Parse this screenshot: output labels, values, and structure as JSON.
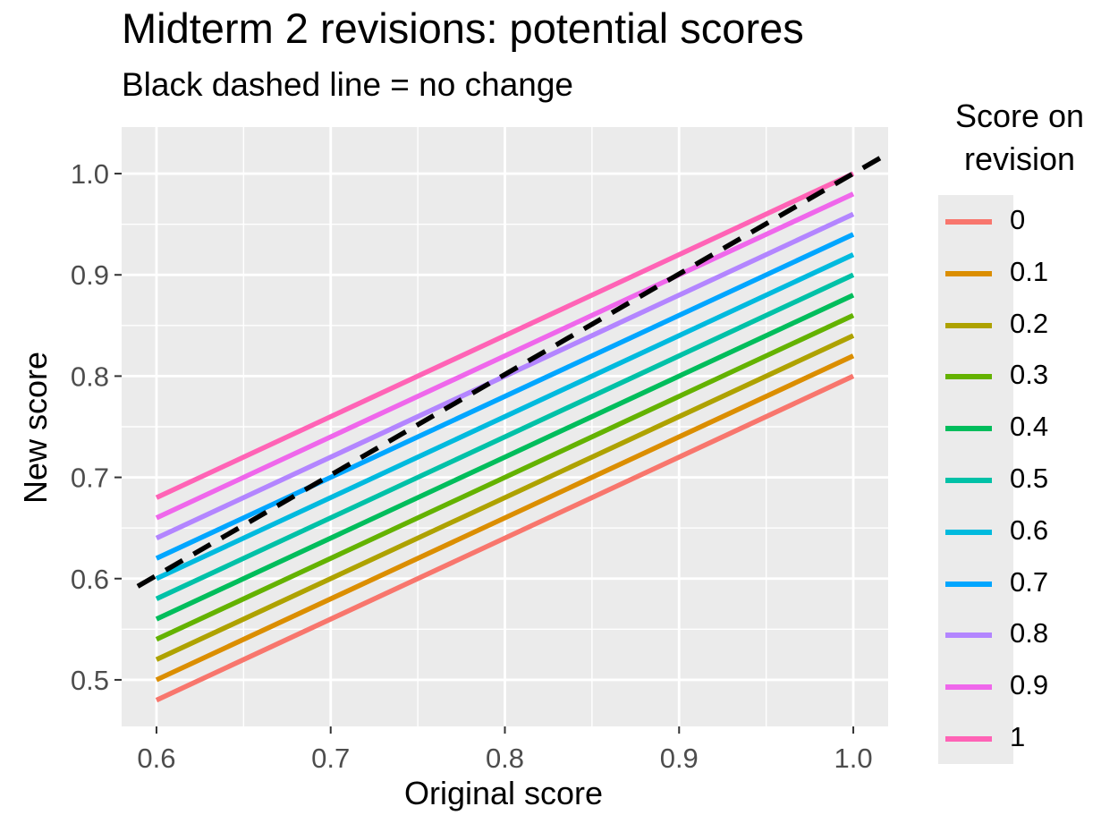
{
  "chart_data": {
    "type": "line",
    "title": "Midterm 2 revisions: potential scores",
    "subtitle": "Black dashed line = no change",
    "xlabel": "Original score",
    "ylabel": "New score",
    "xlim": [
      0.58,
      1.02
    ],
    "ylim": [
      0.454,
      1.046
    ],
    "x_ticks": [
      0.6,
      0.7,
      0.8,
      0.9,
      1.0
    ],
    "x_tick_labels": [
      "0.6",
      "0.7",
      "0.8",
      "0.9",
      "1.0"
    ],
    "y_ticks": [
      0.5,
      0.6,
      0.7,
      0.8,
      0.9,
      1.0
    ],
    "y_tick_labels": [
      "0.5",
      "0.6",
      "0.7",
      "0.8",
      "0.9",
      "1.0"
    ],
    "grid": true,
    "legend_title": "Score on revision",
    "legend_placement": "right",
    "reference_line": {
      "style": "dashed",
      "color": "#000000",
      "x": [
        0.58,
        1.02
      ],
      "y": [
        0.58,
        1.02
      ]
    },
    "series": [
      {
        "name": "0",
        "color": "#F8766D",
        "x": [
          0.6,
          1.0
        ],
        "y": [
          0.48,
          0.8
        ]
      },
      {
        "name": "0.1",
        "color": "#DB8E00",
        "x": [
          0.6,
          1.0
        ],
        "y": [
          0.5,
          0.82
        ]
      },
      {
        "name": "0.2",
        "color": "#AEA200",
        "x": [
          0.6,
          1.0
        ],
        "y": [
          0.52,
          0.84
        ]
      },
      {
        "name": "0.3",
        "color": "#64B200",
        "x": [
          0.6,
          1.0
        ],
        "y": [
          0.54,
          0.86
        ]
      },
      {
        "name": "0.4",
        "color": "#00BD5C",
        "x": [
          0.6,
          1.0
        ],
        "y": [
          0.56,
          0.88
        ]
      },
      {
        "name": "0.5",
        "color": "#00C1A7",
        "x": [
          0.6,
          1.0
        ],
        "y": [
          0.58,
          0.9
        ]
      },
      {
        "name": "0.6",
        "color": "#00BADE",
        "x": [
          0.6,
          1.0
        ],
        "y": [
          0.6,
          0.92
        ]
      },
      {
        "name": "0.7",
        "color": "#00A6FF",
        "x": [
          0.6,
          1.0
        ],
        "y": [
          0.62,
          0.94
        ]
      },
      {
        "name": "0.8",
        "color": "#B385FF",
        "x": [
          0.6,
          1.0
        ],
        "y": [
          0.64,
          0.96
        ]
      },
      {
        "name": "0.9",
        "color": "#EF67EB",
        "x": [
          0.6,
          1.0
        ],
        "y": [
          0.66,
          0.98
        ]
      },
      {
        "name": "1",
        "color": "#FF63B6",
        "x": [
          0.6,
          1.0
        ],
        "y": [
          0.68,
          1.0
        ]
      }
    ]
  }
}
